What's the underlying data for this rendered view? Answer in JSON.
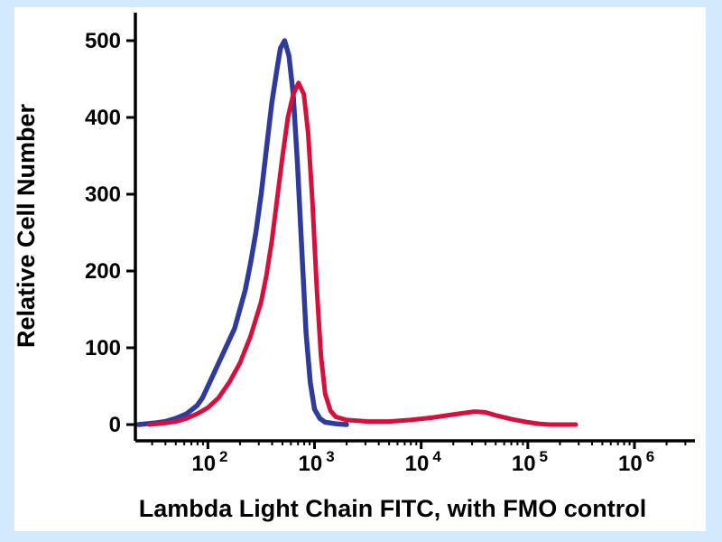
{
  "figure": {
    "background_color": "#d2ebfc",
    "plot_background": "#ffffff",
    "axis_color": "#000000"
  },
  "chart_data": {
    "type": "line",
    "subtype": "flow-cytometry-histogram",
    "title": "",
    "xlabel": "Lambda Light Chain FITC, with FMO control",
    "ylabel": "Relative Cell Number",
    "x_scale": "log",
    "xlim_log10": [
      1.32,
      6.55
    ],
    "ylim": [
      0,
      500
    ],
    "y_ticks": [
      0,
      100,
      200,
      300,
      400,
      500
    ],
    "x_tick_base": "10",
    "x_ticks_exponents": [
      2,
      3,
      4,
      5,
      6
    ],
    "grid": false,
    "legend_position": "none",
    "series": [
      {
        "name": "blue-curve",
        "color": "#2e3b9d",
        "stroke_width": 5.5,
        "points": [
          [
            1.35,
            0
          ],
          [
            1.5,
            2
          ],
          [
            1.6,
            4
          ],
          [
            1.7,
            8
          ],
          [
            1.8,
            14
          ],
          [
            1.9,
            25
          ],
          [
            1.95,
            35
          ],
          [
            2.0,
            50
          ],
          [
            2.05,
            65
          ],
          [
            2.1,
            80
          ],
          [
            2.15,
            95
          ],
          [
            2.2,
            110
          ],
          [
            2.25,
            125
          ],
          [
            2.3,
            150
          ],
          [
            2.35,
            175
          ],
          [
            2.4,
            210
          ],
          [
            2.45,
            250
          ],
          [
            2.5,
            300
          ],
          [
            2.55,
            360
          ],
          [
            2.6,
            420
          ],
          [
            2.65,
            465
          ],
          [
            2.68,
            490
          ],
          [
            2.72,
            500
          ],
          [
            2.76,
            480
          ],
          [
            2.8,
            430
          ],
          [
            2.84,
            340
          ],
          [
            2.88,
            230
          ],
          [
            2.92,
            120
          ],
          [
            2.96,
            55
          ],
          [
            3.0,
            20
          ],
          [
            3.05,
            8
          ],
          [
            3.1,
            3
          ],
          [
            3.2,
            1
          ],
          [
            3.3,
            0
          ]
        ]
      },
      {
        "name": "red-curve",
        "color": "#d60f3c",
        "stroke_width": 5.0,
        "points": [
          [
            1.45,
            0
          ],
          [
            1.6,
            2
          ],
          [
            1.7,
            4
          ],
          [
            1.8,
            8
          ],
          [
            1.9,
            14
          ],
          [
            2.0,
            22
          ],
          [
            2.1,
            35
          ],
          [
            2.2,
            55
          ],
          [
            2.3,
            80
          ],
          [
            2.4,
            115
          ],
          [
            2.5,
            160
          ],
          [
            2.55,
            195
          ],
          [
            2.6,
            240
          ],
          [
            2.65,
            295
          ],
          [
            2.7,
            350
          ],
          [
            2.75,
            400
          ],
          [
            2.8,
            430
          ],
          [
            2.85,
            445
          ],
          [
            2.9,
            430
          ],
          [
            2.94,
            380
          ],
          [
            2.98,
            290
          ],
          [
            3.02,
            180
          ],
          [
            3.06,
            90
          ],
          [
            3.1,
            40
          ],
          [
            3.15,
            18
          ],
          [
            3.2,
            10
          ],
          [
            3.3,
            6
          ],
          [
            3.5,
            4
          ],
          [
            3.7,
            4
          ],
          [
            3.9,
            6
          ],
          [
            4.1,
            9
          ],
          [
            4.3,
            13
          ],
          [
            4.5,
            17
          ],
          [
            4.6,
            16
          ],
          [
            4.7,
            12
          ],
          [
            4.85,
            7
          ],
          [
            5.0,
            3
          ],
          [
            5.1,
            1
          ],
          [
            5.2,
            0
          ],
          [
            5.45,
            0
          ]
        ]
      }
    ]
  }
}
